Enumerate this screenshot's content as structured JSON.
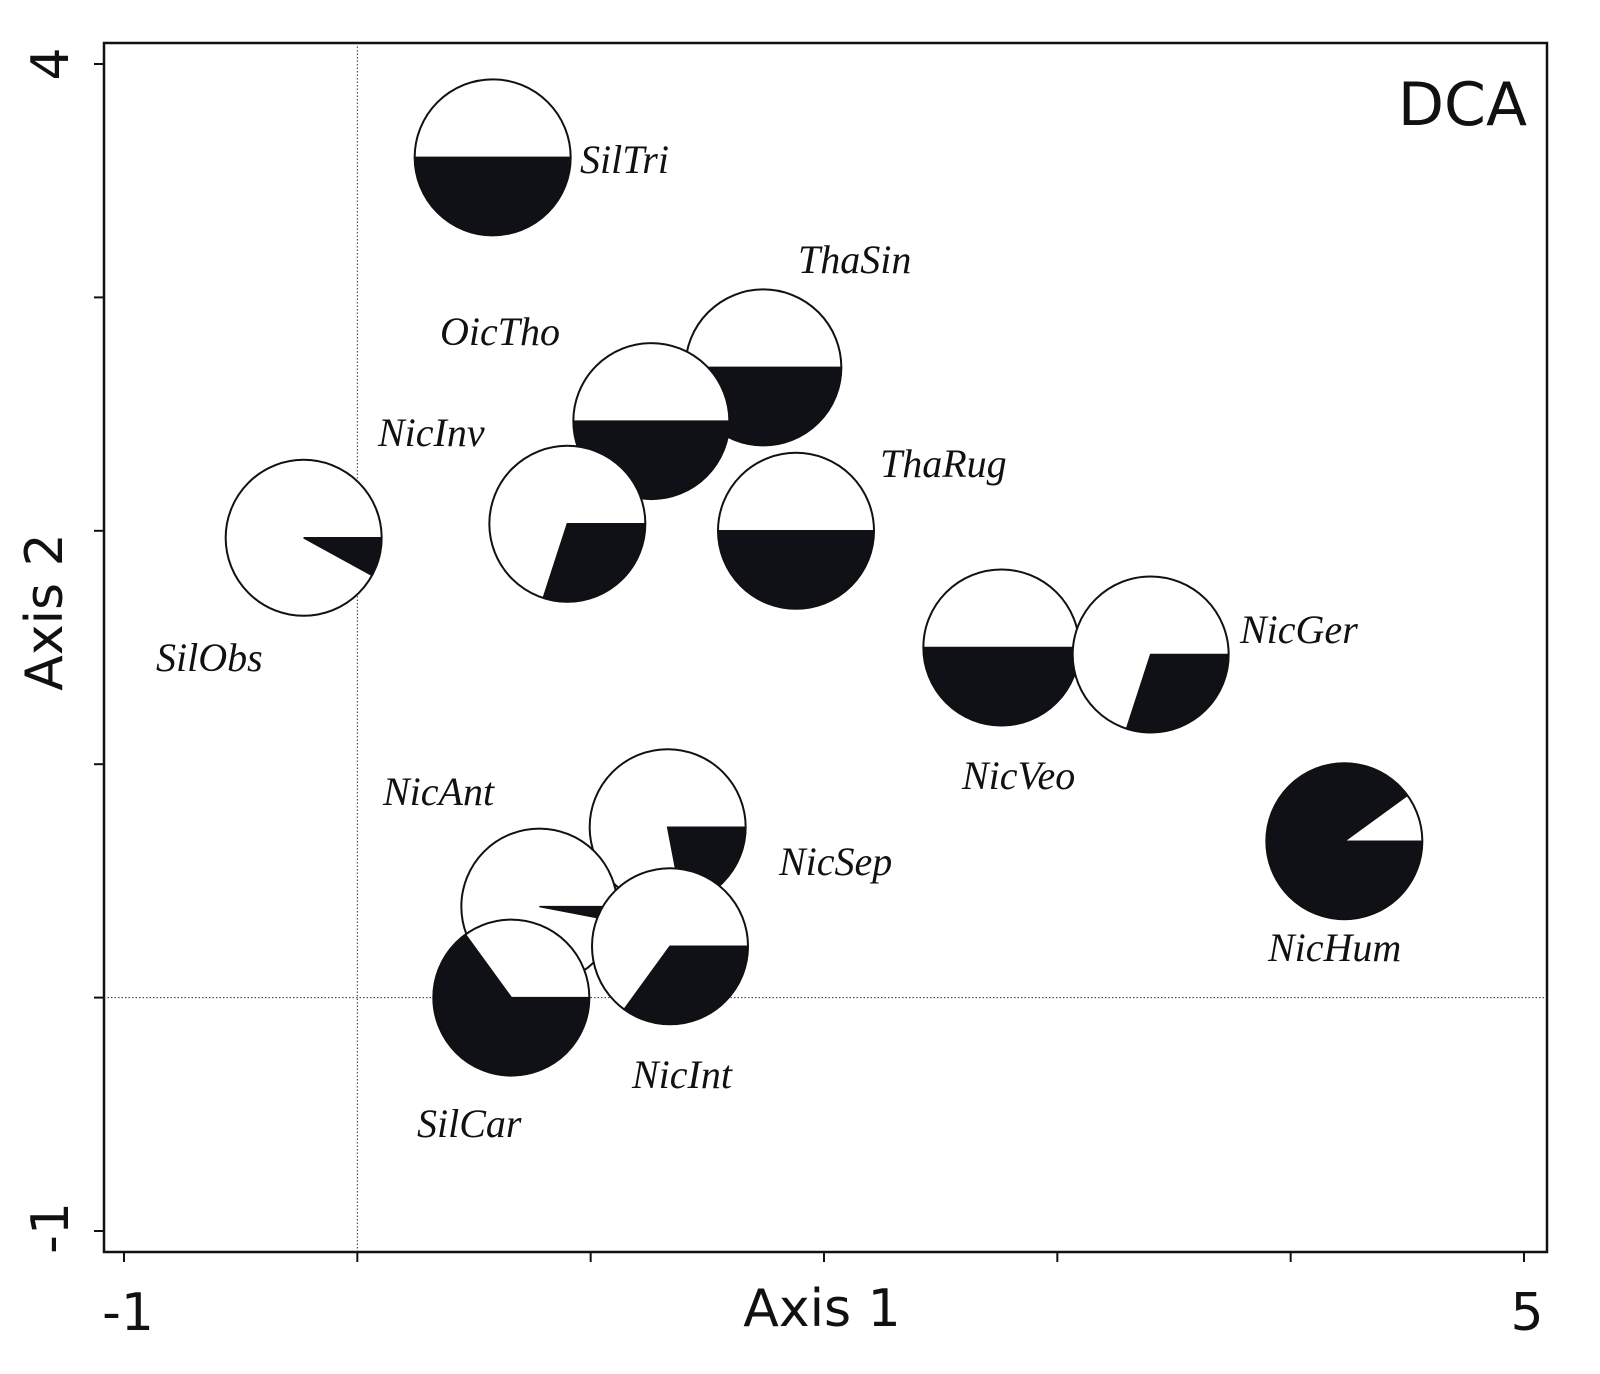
{
  "chart_data": {
    "type": "scatter",
    "title": "DCA",
    "xlabel": "Axis 1",
    "ylabel": "Axis 2",
    "xlim": [
      -1,
      5
    ],
    "ylim": [
      -1,
      4
    ],
    "x_tick_labels": [
      "-1",
      "5"
    ],
    "y_tick_labels": [
      "4",
      "-1"
    ],
    "reference_lines": {
      "x": 0,
      "y": 0
    },
    "marker": "pie",
    "pie_colors": {
      "filled": "#0f1116",
      "empty": "#ffffff"
    },
    "points": [
      {
        "label": "SilTri",
        "x": 0.58,
        "y": 3.6,
        "filled_fraction": 0.5
      },
      {
        "label": "ThaSin",
        "x": 1.74,
        "y": 2.7,
        "filled_fraction": 0.5
      },
      {
        "label": "OicTho",
        "x": 1.26,
        "y": 2.47,
        "filled_fraction": 0.5
      },
      {
        "label": "NicInv",
        "x": 0.9,
        "y": 2.03,
        "filled_fraction": 0.3
      },
      {
        "label": "ThaRug",
        "x": 1.88,
        "y": 2.0,
        "filled_fraction": 0.5
      },
      {
        "label": "SilObs",
        "x": -0.23,
        "y": 1.97,
        "filled_fraction": 0.08
      },
      {
        "label": "NicVeo",
        "x": 2.76,
        "y": 1.5,
        "filled_fraction": 0.5
      },
      {
        "label": "NicGer",
        "x": 3.4,
        "y": 1.47,
        "filled_fraction": 0.3
      },
      {
        "label": "NicSep",
        "x": 1.33,
        "y": 0.73,
        "filled_fraction": 0.22
      },
      {
        "label": "NicHum",
        "x": 4.23,
        "y": 0.67,
        "filled_fraction": 0.9
      },
      {
        "label": "NicAnt",
        "x": 0.78,
        "y": 0.39,
        "filled_fraction": 0.03
      },
      {
        "label": "NicInt",
        "x": 1.34,
        "y": 0.22,
        "filled_fraction": 0.35
      },
      {
        "label": "SilCar",
        "x": 0.66,
        "y": 0.0,
        "filled_fraction": 0.65
      }
    ]
  }
}
